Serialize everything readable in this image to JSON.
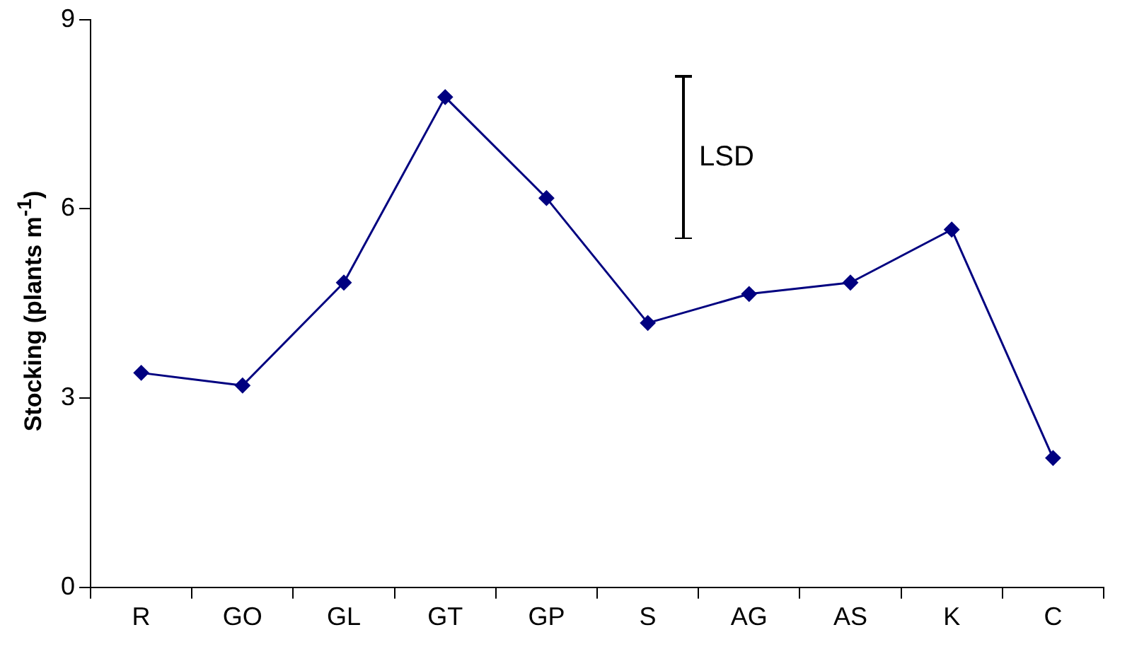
{
  "chart_data": {
    "type": "line",
    "ylabel": "Stocking (plants m$^{-1}$)",
    "categories": [
      "R",
      "GO",
      "GL",
      "GT",
      "GP",
      "S",
      "AG",
      "AS",
      "K",
      "C"
    ],
    "series": [
      {
        "color": "#000080",
        "values": [
          3.4,
          3.2,
          4.83,
          7.77,
          6.17,
          4.19,
          4.65,
          4.83,
          5.67,
          2.05
        ]
      }
    ],
    "ylim": [
      0,
      9
    ],
    "yticks": [
      0,
      3,
      6,
      9
    ],
    "grid": false,
    "legend": false,
    "marker": "diamond",
    "line_style": "solid",
    "annotations": [
      "LSD"
    ]
  }
}
